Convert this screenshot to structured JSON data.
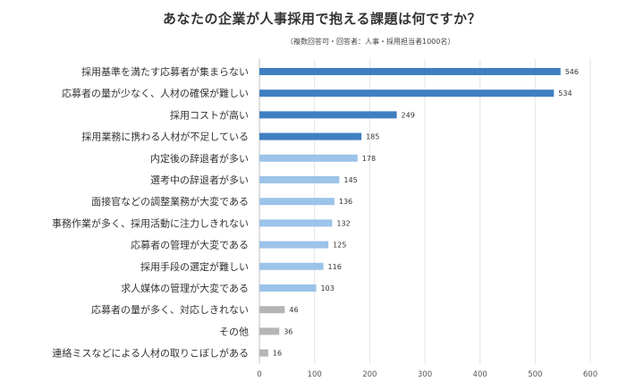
{
  "chart_data": {
    "type": "bar",
    "orientation": "horizontal",
    "title": "あなたの企業が人事採用で抱える課題は何ですか？",
    "subtitle": "（複数回答可・回答者：人事・採用担当者1000名）",
    "categories": [
      "採用基準を満たす応募者が集まらない",
      "応募者の量が少なく、人材の確保が難しい",
      "採用コストが高い",
      "採用業務に携わる人材が不足している",
      "内定後の辞退者が多い",
      "選考中の辞退者が多い",
      "面接官などの調整業務が大変である",
      "事務作業が多く、採用活動に注力しきれない",
      "応募者の管理が大変である",
      "採用手段の選定が難しい",
      "求人媒体の管理が大変である",
      "応募者の量が多く、対応しきれない",
      "その他",
      "連絡ミスなどによる人材の取りこぼしがある"
    ],
    "values": [
      546,
      534,
      249,
      185,
      178,
      145,
      136,
      132,
      125,
      116,
      103,
      46,
      36,
      16
    ],
    "bar_colors": [
      "#3f7fc0",
      "#3f7fc0",
      "#3f7fc0",
      "#3f7fc0",
      "#9cc3e9",
      "#9cc3e9",
      "#9cc3e9",
      "#9cc3e9",
      "#9cc3e9",
      "#9cc3e9",
      "#9cc3e9",
      "#b5b5b5",
      "#b5b5b5",
      "#b5b5b5"
    ],
    "xlim": [
      0,
      600
    ],
    "xticks": [
      0,
      100,
      200,
      300,
      400,
      500,
      600
    ],
    "grid": true,
    "legend": "none"
  }
}
